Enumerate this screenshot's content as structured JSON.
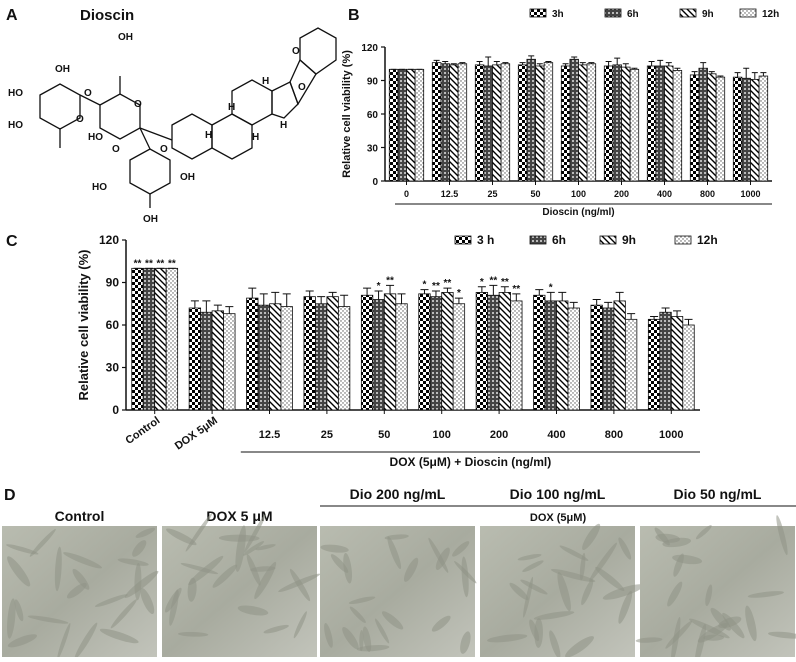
{
  "panel_a": {
    "letter": "A",
    "title": "Dioscin",
    "atoms": [
      "OH",
      "HO",
      "HO",
      "O",
      "O",
      "OH",
      "O",
      "HO",
      "O",
      "O",
      "HO",
      "OH",
      "OH",
      "O",
      "O",
      "H",
      "H",
      "H",
      "H",
      "H"
    ]
  },
  "panel_b": {
    "letter": "B"
  },
  "panel_c": {
    "letter": "C"
  },
  "panel_d": {
    "letter": "D",
    "labels": [
      "Control",
      "DOX 5 μM",
      "Dio 200 ng/mL",
      "Dio 100 ng/mL",
      "Dio 50 ng/mL"
    ],
    "group_label": "DOX (5μM)"
  },
  "chart_data": [
    {
      "type": "bar",
      "ylabel": "Relative cell viability (%)",
      "xlabel": "Dioscin (ng/ml)",
      "categories": [
        "0",
        "12.5",
        "25",
        "50",
        "100",
        "200",
        "400",
        "800",
        "1000"
      ],
      "ylim": [
        0,
        120
      ],
      "yticks": [
        0,
        30,
        60,
        90,
        120
      ],
      "legend": "top-right",
      "series": [
        {
          "name": "3h",
          "pattern": "checker",
          "values": [
            100,
            106,
            104,
            104,
            103,
            103,
            103,
            95,
            93
          ],
          "errors": [
            0,
            2,
            3,
            2,
            2,
            4,
            4,
            3,
            4
          ]
        },
        {
          "name": "6h",
          "pattern": "grid",
          "values": [
            100,
            105,
            103,
            109,
            109,
            104,
            103,
            101,
            92
          ],
          "errors": [
            0,
            2,
            8,
            3,
            2,
            6,
            5,
            5,
            9
          ]
        },
        {
          "name": "9h",
          "pattern": "diagonal",
          "values": [
            100,
            104,
            104,
            103,
            104,
            102,
            103,
            96,
            91
          ],
          "errors": [
            0,
            1,
            3,
            2,
            2,
            3,
            3,
            2,
            6
          ]
        },
        {
          "name": "12h",
          "pattern": "dots",
          "values": [
            100,
            105,
            105,
            106,
            105,
            100,
            99,
            93,
            94
          ],
          "errors": [
            0,
            1,
            1,
            1,
            1,
            1,
            2,
            1,
            3
          ]
        }
      ]
    },
    {
      "type": "bar",
      "ylabel": "Relative cell viability (%)",
      "group_label": "DOX (5μM) + Dioscin (ng/ml)",
      "categories": [
        "Control",
        "DOX 5μM",
        "12.5",
        "25",
        "50",
        "100",
        "200",
        "400",
        "800",
        "1000"
      ],
      "ylim": [
        0,
        120
      ],
      "yticks": [
        0,
        30,
        60,
        90,
        120
      ],
      "legend": "top-right",
      "series": [
        {
          "name": "3 h",
          "pattern": "checker",
          "values": [
            100,
            72,
            79,
            80,
            81,
            82,
            83,
            81,
            74,
            64
          ],
          "errors": [
            0,
            5,
            7,
            4,
            5,
            3,
            4,
            4,
            4,
            2
          ],
          "significance": [
            "**",
            null,
            null,
            null,
            null,
            "*",
            "*",
            null,
            null,
            null
          ]
        },
        {
          "name": "6h",
          "pattern": "grid",
          "values": [
            100,
            69,
            74,
            75,
            78,
            80,
            81,
            77,
            72,
            69
          ],
          "errors": [
            0,
            8,
            8,
            5,
            6,
            4,
            7,
            6,
            4,
            3
          ],
          "significance": [
            "**",
            null,
            null,
            null,
            "*",
            "**",
            "**",
            "*",
            null,
            null
          ]
        },
        {
          "name": "9h",
          "pattern": "diagonal",
          "values": [
            100,
            70,
            75,
            80,
            82,
            83,
            83,
            77,
            77,
            66
          ],
          "errors": [
            0,
            4,
            8,
            3,
            6,
            3,
            4,
            6,
            6,
            4
          ],
          "significance": [
            "**",
            null,
            null,
            null,
            "**",
            "**",
            "**",
            null,
            null,
            null
          ]
        },
        {
          "name": "12h",
          "pattern": "dots",
          "values": [
            100,
            68,
            73,
            73,
            75,
            75,
            77,
            72,
            64,
            60
          ],
          "errors": [
            0,
            5,
            9,
            8,
            7,
            4,
            5,
            4,
            4,
            4
          ],
          "significance": [
            "**",
            null,
            null,
            null,
            null,
            "*",
            "**",
            null,
            null,
            null
          ]
        }
      ]
    }
  ]
}
